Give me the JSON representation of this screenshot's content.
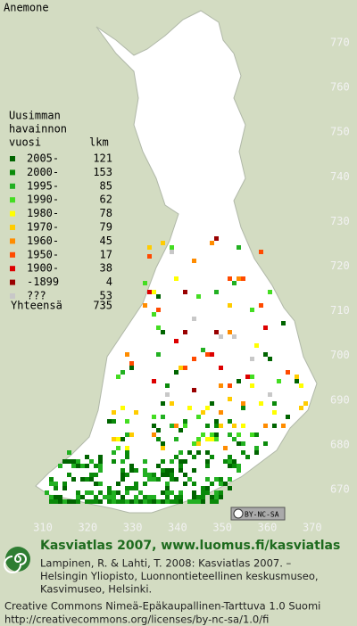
{
  "map": {
    "title": "Anemone",
    "legend": {
      "heading": [
        "Uusimman",
        "havainnon"
      ],
      "col1": "vuosi",
      "col2": "lkm",
      "rows": [
        {
          "label": "2005-",
          "count": 121,
          "color": "#006400"
        },
        {
          "label": "2000-",
          "count": 153,
          "color": "#0a8a0a"
        },
        {
          "label": "1995-",
          "count": 85,
          "color": "#22b022"
        },
        {
          "label": "1990-",
          "count": 62,
          "color": "#44dd22"
        },
        {
          "label": "1980-",
          "count": 78,
          "color": "#ffff00"
        },
        {
          "label": "1970-",
          "count": 79,
          "color": "#ffcc00"
        },
        {
          "label": "1960-",
          "count": 45,
          "color": "#ff8c00"
        },
        {
          "label": "1950-",
          "count": 17,
          "color": "#ff4a00"
        },
        {
          "label": "1900-",
          "count": 38,
          "color": "#dd0000"
        },
        {
          "label": "-1899",
          "count": 4,
          "color": "#990000"
        },
        {
          "label": "???",
          "count": 53,
          "color": "#c8c8c8"
        }
      ],
      "total_label": "Yhteensä",
      "total": 735
    },
    "yticks": [
      770,
      760,
      750,
      740,
      730,
      720,
      710,
      700,
      690,
      680,
      670
    ],
    "xticks": [
      310,
      320,
      330,
      340,
      350,
      360,
      370
    ],
    "license_badge": "BY-NC-SA",
    "footer": {
      "heading": "Kasviatlas 2007, www.luomus.fi/kasviatlas",
      "citation": [
        "Lampinen, R. & Lahti, T. 2008: Kasviatlas 2007. –",
        "Helsingin Yliopisto, Luonnontieteellinen keskusmuseo,",
        "Kasvimuseo, Helsinki."
      ],
      "license": [
        "Creative Commons Nimeä-Epäkaupallinen-Tarttuva 1.0 Suomi",
        "http://creativecommons.org/licenses/by-nc-sa/1.0/fi"
      ]
    }
  }
}
